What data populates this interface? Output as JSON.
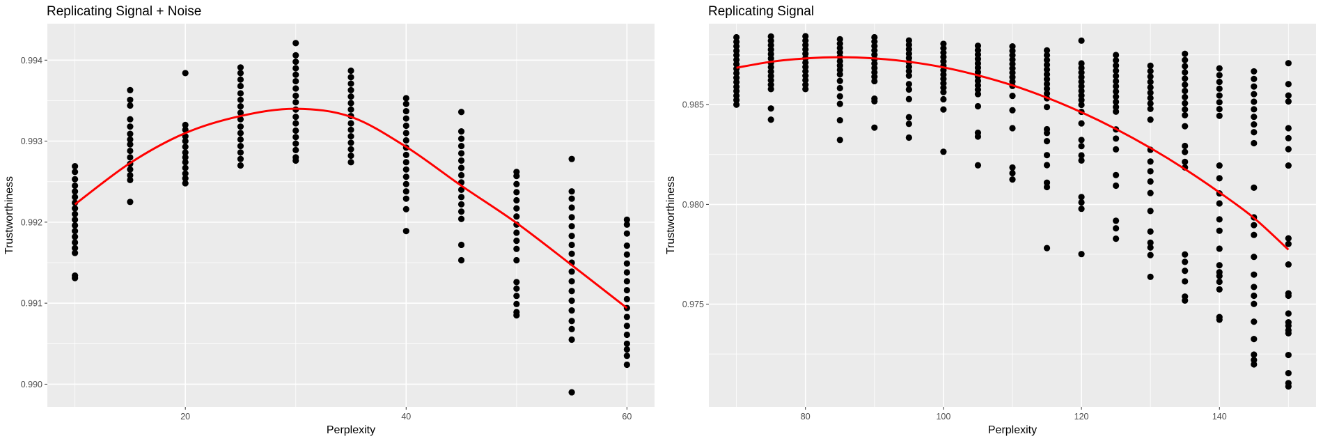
{
  "chart_data": [
    {
      "type": "scatter",
      "title": "Replicating Signal + Noise",
      "xlabel": "Perplexity",
      "ylabel": "Trustworthiness",
      "xlim": [
        7.5,
        62.5
      ],
      "ylim": [
        0.98972,
        0.99445
      ],
      "xticks": [
        20,
        40,
        60
      ],
      "xtick_labels": [
        "20",
        "40",
        "60"
      ],
      "xminor": [
        10,
        30,
        50
      ],
      "yticks": [
        0.99,
        0.991,
        0.992,
        0.993,
        0.994
      ],
      "ytick_labels": [
        "0.990",
        "0.991",
        "0.992",
        "0.993",
        "0.994"
      ],
      "yminor": [
        0.9905,
        0.9915,
        0.9925,
        0.9935
      ],
      "grid": true,
      "points": [
        {
          "x": 10,
          "y": [
            0.99269,
            0.99262,
            0.99253,
            0.99245,
            0.99238,
            0.99231,
            0.99224,
            0.99217,
            0.9921,
            0.99203,
            0.99196,
            0.99189,
            0.99182,
            0.99175,
            0.99168,
            0.99162,
            0.99131,
            0.99134
          ]
        },
        {
          "x": 15,
          "y": [
            0.99363,
            0.99351,
            0.99344,
            0.99327,
            0.99318,
            0.99309,
            0.99302,
            0.99296,
            0.99288,
            0.9928,
            0.99272,
            0.99265,
            0.99258,
            0.99252,
            0.99225
          ]
        },
        {
          "x": 20,
          "y": [
            0.99384,
            0.9932,
            0.99314,
            0.99306,
            0.993,
            0.99293,
            0.99286,
            0.9928,
            0.99274,
            0.99267,
            0.9926,
            0.99254,
            0.99248
          ]
        },
        {
          "x": 25,
          "y": [
            0.99391,
            0.99384,
            0.99376,
            0.99368,
            0.99359,
            0.99351,
            0.99343,
            0.99335,
            0.99327,
            0.99318,
            0.9931,
            0.99302,
            0.99294,
            0.99286,
            0.99278,
            0.9927
          ]
        },
        {
          "x": 30,
          "y": [
            0.99421,
            0.99406,
            0.99398,
            0.9939,
            0.99382,
            0.99374,
            0.99365,
            0.99356,
            0.99348,
            0.99339,
            0.9933,
            0.99322,
            0.99313,
            0.99305,
            0.99297,
            0.99289,
            0.9928,
            0.99276
          ]
        },
        {
          "x": 35,
          "y": [
            0.99387,
            0.99379,
            0.99371,
            0.99363,
            0.99355,
            0.99347,
            0.99339,
            0.99331,
            0.99322,
            0.99314,
            0.99306,
            0.99298,
            0.9929,
            0.99282,
            0.99274
          ]
        },
        {
          "x": 40,
          "y": [
            0.99353,
            0.99346,
            0.99337,
            0.99328,
            0.99319,
            0.9931,
            0.99301,
            0.99292,
            0.99283,
            0.99274,
            0.99265,
            0.99256,
            0.99247,
            0.99238,
            0.99229,
            0.99216,
            0.99189
          ]
        },
        {
          "x": 45,
          "y": [
            0.99336,
            0.99312,
            0.99303,
            0.99294,
            0.99285,
            0.99276,
            0.99267,
            0.99258,
            0.99249,
            0.9924,
            0.99231,
            0.99222,
            0.99213,
            0.99204,
            0.99172,
            0.99153
          ]
        },
        {
          "x": 50,
          "y": [
            0.99262,
            0.99257,
            0.99247,
            0.99237,
            0.99227,
            0.99217,
            0.99207,
            0.99197,
            0.99187,
            0.99177,
            0.99167,
            0.99153,
            0.99126,
            0.99118,
            0.99109,
            0.99099,
            0.99089,
            0.99085
          ]
        },
        {
          "x": 55,
          "y": [
            0.99278,
            0.99238,
            0.99229,
            0.99218,
            0.99206,
            0.99195,
            0.99183,
            0.99172,
            0.99161,
            0.9915,
            0.99139,
            0.99127,
            0.99115,
            0.99103,
            0.99091,
            0.99078,
            0.99068,
            0.99055,
            0.9899
          ]
        },
        {
          "x": 60,
          "y": [
            0.99203,
            0.99197,
            0.99186,
            0.99171,
            0.9916,
            0.99149,
            0.99138,
            0.99127,
            0.99116,
            0.99105,
            0.99094,
            0.99083,
            0.99072,
            0.99061,
            0.9905,
            0.99043,
            0.99035,
            0.99024
          ]
        }
      ],
      "smooth": {
        "color": "#ff0000",
        "x": [
          10,
          15,
          20,
          25,
          30,
          35,
          40,
          45,
          50,
          55,
          60
        ],
        "y": [
          0.99222,
          0.99273,
          0.9931,
          0.99331,
          0.9934,
          0.9933,
          0.99293,
          0.99245,
          0.99199,
          0.99147,
          0.99094
        ]
      }
    },
    {
      "type": "scatter",
      "title": "Replicating Signal",
      "xlabel": "Perplexity",
      "ylabel": "Trustworthiness",
      "xlim": [
        66,
        154
      ],
      "ylim": [
        0.96985,
        0.98906
      ],
      "xticks": [
        80,
        100,
        120,
        140
      ],
      "xtick_labels": [
        "80",
        "100",
        "120",
        "140"
      ],
      "xminor": [
        70,
        90,
        110,
        130,
        150
      ],
      "yticks": [
        0.975,
        0.98,
        0.985
      ],
      "ytick_labels": [
        "0.975",
        "0.980",
        "0.985"
      ],
      "yminor": [
        0.9725,
        0.9775,
        0.9825,
        0.9875
      ],
      "grid": true,
      "points": [
        {
          "x": 70,
          "y": [
            0.98838,
            0.98815,
            0.98793,
            0.9877,
            0.98748,
            0.98725,
            0.98703,
            0.9868,
            0.98658,
            0.98635,
            0.98613,
            0.9859,
            0.98568,
            0.98545,
            0.98523,
            0.985
          ]
        },
        {
          "x": 75,
          "y": [
            0.98842,
            0.9882,
            0.98798,
            0.98776,
            0.98754,
            0.98732,
            0.9871,
            0.98688,
            0.98666,
            0.98644,
            0.98622,
            0.986,
            0.98578,
            0.98481,
            0.98425
          ]
        },
        {
          "x": 80,
          "y": [
            0.98843,
            0.98821,
            0.98799,
            0.98777,
            0.98755,
            0.98733,
            0.98711,
            0.98689,
            0.98667,
            0.98645,
            0.98623,
            0.986,
            0.98578
          ]
        },
        {
          "x": 85,
          "y": [
            0.98828,
            0.98806,
            0.98784,
            0.98762,
            0.9874,
            0.98718,
            0.98696,
            0.98674,
            0.98652,
            0.98619,
            0.98583,
            0.98542,
            0.98504,
            0.98422,
            0.98323
          ]
        },
        {
          "x": 90,
          "y": [
            0.98838,
            0.98816,
            0.98794,
            0.98772,
            0.9875,
            0.98728,
            0.98706,
            0.98684,
            0.98662,
            0.9864,
            0.98618,
            0.9853,
            0.98517,
            0.98385
          ]
        },
        {
          "x": 95,
          "y": [
            0.98822,
            0.988,
            0.98778,
            0.98756,
            0.98734,
            0.98712,
            0.9869,
            0.98668,
            0.98646,
            0.98603,
            0.98576,
            0.98528,
            0.98437,
            0.98404,
            0.98335
          ]
        },
        {
          "x": 100,
          "y": [
            0.98805,
            0.98783,
            0.98761,
            0.98739,
            0.98717,
            0.98695,
            0.98673,
            0.98651,
            0.98629,
            0.98607,
            0.98585,
            0.98563,
            0.98527,
            0.98476,
            0.98264
          ]
        },
        {
          "x": 105,
          "y": [
            0.98795,
            0.98773,
            0.98751,
            0.98729,
            0.98707,
            0.98685,
            0.98663,
            0.98641,
            0.98619,
            0.98597,
            0.98575,
            0.98553,
            0.98492,
            0.98359,
            0.9834,
            0.98196
          ]
        },
        {
          "x": 110,
          "y": [
            0.98792,
            0.9877,
            0.98748,
            0.98726,
            0.98704,
            0.98682,
            0.9866,
            0.98638,
            0.98616,
            0.98594,
            0.98544,
            0.98472,
            0.98382,
            0.98185,
            0.98157,
            0.98125
          ]
        },
        {
          "x": 115,
          "y": [
            0.98772,
            0.98748,
            0.98724,
            0.987,
            0.98676,
            0.98652,
            0.98628,
            0.98604,
            0.9858,
            0.98556,
            0.98532,
            0.98488,
            0.98377,
            0.98358,
            0.98317,
            0.98247,
            0.98197,
            0.98109,
            0.98087,
            0.97781
          ]
        },
        {
          "x": 120,
          "y": [
            0.98821,
            0.98707,
            0.98684,
            0.98661,
            0.98638,
            0.98615,
            0.98592,
            0.98569,
            0.98546,
            0.98523,
            0.98499,
            0.98464,
            0.98406,
            0.98323,
            0.98292,
            0.98246,
            0.9822,
            0.98037,
            0.9801,
            0.97978,
            0.97751
          ]
        },
        {
          "x": 125,
          "y": [
            0.98749,
            0.98722,
            0.98696,
            0.9867,
            0.98644,
            0.98618,
            0.98592,
            0.98566,
            0.9854,
            0.98514,
            0.98488,
            0.98465,
            0.98376,
            0.9833,
            0.98276,
            0.98147,
            0.98094,
            0.97918,
            0.9788,
            0.97828
          ]
        },
        {
          "x": 130,
          "y": [
            0.98695,
            0.98668,
            0.98641,
            0.98614,
            0.98587,
            0.9856,
            0.98533,
            0.98506,
            0.98479,
            0.98425,
            0.98274,
            0.98215,
            0.98166,
            0.98115,
            0.98057,
            0.97967,
            0.97864,
            0.97808,
            0.97784,
            0.97746,
            0.97637
          ]
        },
        {
          "x": 135,
          "y": [
            0.98755,
            0.98724,
            0.98693,
            0.98662,
            0.98631,
            0.986,
            0.98569,
            0.98538,
            0.98507,
            0.98476,
            0.98447,
            0.98392,
            0.98293,
            0.98263,
            0.98213,
            0.98185,
            0.97749,
            0.97712,
            0.97667,
            0.97614,
            0.97538,
            0.97518
          ]
        },
        {
          "x": 140,
          "y": [
            0.98682,
            0.98648,
            0.98614,
            0.9858,
            0.98546,
            0.98512,
            0.98478,
            0.98444,
            0.98195,
            0.98131,
            0.98055,
            0.98005,
            0.97925,
            0.97868,
            0.97778,
            0.97695,
            0.9766,
            0.97641,
            0.97612,
            0.97574,
            0.97435,
            0.97422
          ]
        },
        {
          "x": 145,
          "y": [
            0.98667,
            0.98629,
            0.98591,
            0.98553,
            0.98515,
            0.98477,
            0.98439,
            0.98401,
            0.98362,
            0.98307,
            0.98084,
            0.97935,
            0.97896,
            0.97847,
            0.97737,
            0.97648,
            0.97586,
            0.97542,
            0.97501,
            0.97412,
            0.97325,
            0.97247,
            0.9722,
            0.97198
          ]
        },
        {
          "x": 150,
          "y": [
            0.98708,
            0.98603,
            0.98546,
            0.98516,
            0.98382,
            0.98332,
            0.98277,
            0.98195,
            0.9783,
            0.97802,
            0.97699,
            0.97554,
            0.97542,
            0.97453,
            0.97409,
            0.97392,
            0.97369,
            0.97354,
            0.97245,
            0.97154,
            0.97104,
            0.97087
          ]
        }
      ],
      "smooth": {
        "color": "#ff0000",
        "x": [
          70,
          75,
          80,
          85,
          90,
          95,
          100,
          105,
          110,
          115,
          120,
          125,
          130,
          135,
          140,
          145,
          150
        ],
        "y": [
          0.98685,
          0.98715,
          0.98732,
          0.98738,
          0.98732,
          0.98715,
          0.98687,
          0.98647,
          0.98597,
          0.98535,
          0.98462,
          0.98378,
          0.98283,
          0.98177,
          0.9806,
          0.97932,
          0.97773
        ]
      }
    }
  ]
}
